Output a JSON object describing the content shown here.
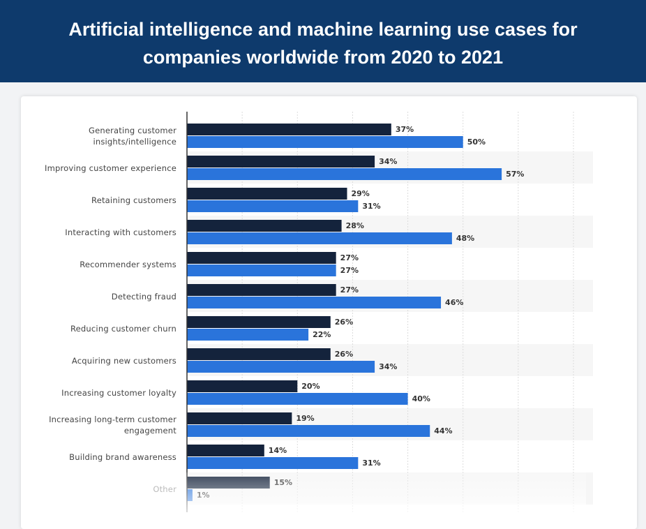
{
  "chart_data": {
    "type": "bar",
    "orientation": "horizontal",
    "title": "Artificial intelligence and machine learning use cases for companies worldwide from 2020 to 2021",
    "categories": [
      "Generating customer insights/intelligence",
      "Improving customer experience",
      "Retaining customers",
      "Interacting with customers",
      "Recommender systems",
      "Detecting fraud",
      "Reducing customer churn",
      "Acquiring new customers",
      "Increasing customer loyalty",
      "Increasing long-term customer engagement",
      "Building brand awareness",
      "Other"
    ],
    "series": [
      {
        "color": "#14233c",
        "values": [
          37,
          34,
          29,
          28,
          27,
          27,
          26,
          26,
          20,
          19,
          14,
          15
        ],
        "value_labels": [
          "37%",
          "34%",
          "29%",
          "28%",
          "27%",
          "27%",
          "26%",
          "26%",
          "20%",
          "19%",
          "14%",
          "15%"
        ]
      },
      {
        "color": "#2a74db",
        "values": [
          50,
          57,
          31,
          48,
          27,
          46,
          22,
          34,
          40,
          44,
          31,
          1
        ],
        "value_labels": [
          "50%",
          "57%",
          "31%",
          "48%",
          "27%",
          "46%",
          "22%",
          "34%",
          "40%",
          "44%",
          "31%",
          "1%"
        ]
      }
    ],
    "xlim": [
      0,
      70
    ],
    "xticks": [
      0,
      10,
      20,
      30,
      40,
      50,
      60,
      70
    ],
    "grid": true
  }
}
